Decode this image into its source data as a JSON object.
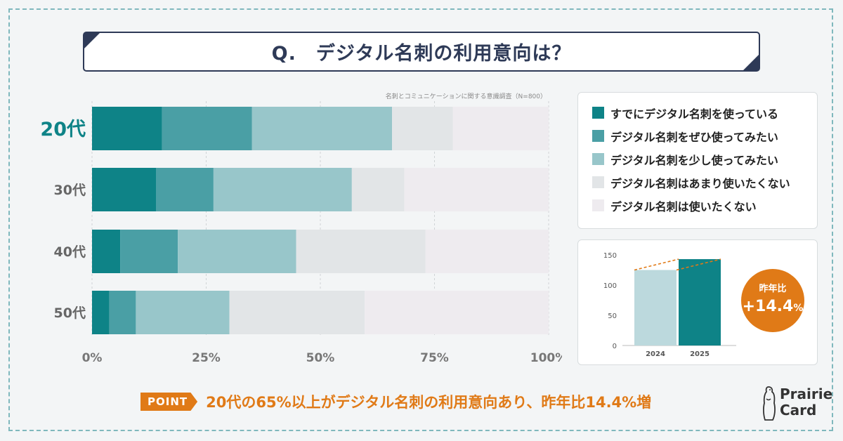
{
  "title": "Q.　デジタル名刺の利用意向は？",
  "source": "名刺とコミュニケーションに関する意識調査（N=800）",
  "colors": {
    "navy": "#2e3a57",
    "accent": "#e07a17",
    "s1": "#0e8387",
    "s2": "#4a9fa5",
    "s3": "#98c6ca",
    "s4": "#e2e5e7",
    "s5": "#eeebef"
  },
  "chart_data": [
    {
      "type": "bar",
      "orientation": "horizontal",
      "stacked": true,
      "categories": [
        "20代",
        "30代",
        "40代",
        "50代"
      ],
      "highlight_category": "20代",
      "series": [
        {
          "name": "すでにデジタル名刺を使っている",
          "values": [
            15.3,
            14.0,
            6.2,
            3.8
          ]
        },
        {
          "name": "デジタル名刺をぜひ使ってみたい",
          "values": [
            19.7,
            12.6,
            12.6,
            5.8
          ]
        },
        {
          "name": "デジタル名刺を少し使ってみたい",
          "values": [
            30.7,
            30.3,
            25.9,
            20.5
          ]
        },
        {
          "name": "デジタル名刺はあまり使いたくない",
          "values": [
            13.3,
            11.5,
            28.3,
            29.6
          ]
        },
        {
          "name": "デジタル名刺は使いたくない",
          "values": [
            21.0,
            31.6,
            27.0,
            40.3
          ]
        }
      ],
      "xlim": [
        0,
        100
      ],
      "xticks": [
        "0%",
        "25%",
        "50%",
        "75%",
        "100%"
      ],
      "legend_position": "right"
    },
    {
      "type": "bar",
      "categories": [
        "2024",
        "2025"
      ],
      "values": [
        125,
        143
      ],
      "ylim": [
        0,
        150
      ],
      "yticks": [
        "0",
        "50",
        "100",
        "150"
      ]
    }
  ],
  "badge": {
    "label": "昨年比",
    "value": "+14.4",
    "unit": "%"
  },
  "footer": {
    "tag": "POINT",
    "text": "20代の65%以上がデジタル名刺の利用意向あり、昨年比14.4%増"
  },
  "logo": {
    "line1": "Prairie",
    "line2": "Card"
  }
}
